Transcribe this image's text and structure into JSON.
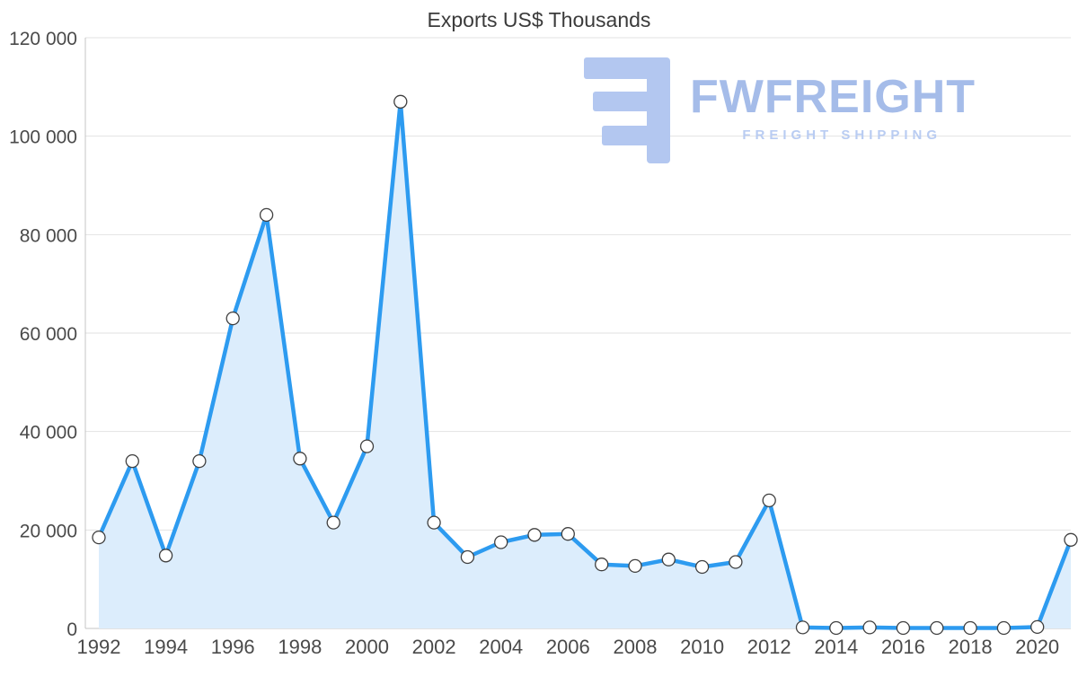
{
  "title": "Exports US$ Thousands",
  "watermark": {
    "brand": "FWFREIGHT",
    "tagline": "FREIGHT SHIPPING",
    "logo_color": "#b3c7f0",
    "brand_color": "#a5bce9",
    "tagline_color": "#b9ccf2"
  },
  "chart_data": {
    "type": "area",
    "title": "Exports US$ Thousands",
    "xlabel": "",
    "ylabel": "",
    "x": [
      1992,
      1993,
      1994,
      1995,
      1996,
      1997,
      1998,
      1999,
      2000,
      2001,
      2002,
      2003,
      2004,
      2005,
      2006,
      2007,
      2008,
      2009,
      2010,
      2011,
      2012,
      2013,
      2014,
      2015,
      2016,
      2017,
      2018,
      2019,
      2020,
      2021
    ],
    "values": [
      18500,
      34000,
      14800,
      34000,
      63000,
      84000,
      34500,
      21500,
      37000,
      107000,
      21500,
      14500,
      17500,
      19000,
      19200,
      13000,
      12700,
      14000,
      12500,
      13500,
      26000,
      200,
      100,
      200,
      100,
      100,
      100,
      100,
      300,
      18000
    ],
    "ylim": [
      0,
      120000
    ],
    "y_ticks": [
      0,
      20000,
      40000,
      60000,
      80000,
      100000,
      120000
    ],
    "y_tick_labels": [
      "0",
      "20 000",
      "40 000",
      "60 000",
      "80 000",
      "100 000",
      "120 000"
    ],
    "x_tick_years": [
      1992,
      1994,
      1996,
      1998,
      2000,
      2002,
      2004,
      2006,
      2008,
      2010,
      2012,
      2014,
      2016,
      2018,
      2020
    ],
    "grid": "horizontal",
    "legend": "none",
    "line_color": "#2d9bf0",
    "fill_color": "#dcedfc",
    "marker_fill": "#ffffff",
    "marker_stroke": "#3f3f3f",
    "grid_color": "#e2e2e2",
    "axis_color": "#c4c4c4",
    "tick_label_color": "#4a4a4a"
  }
}
